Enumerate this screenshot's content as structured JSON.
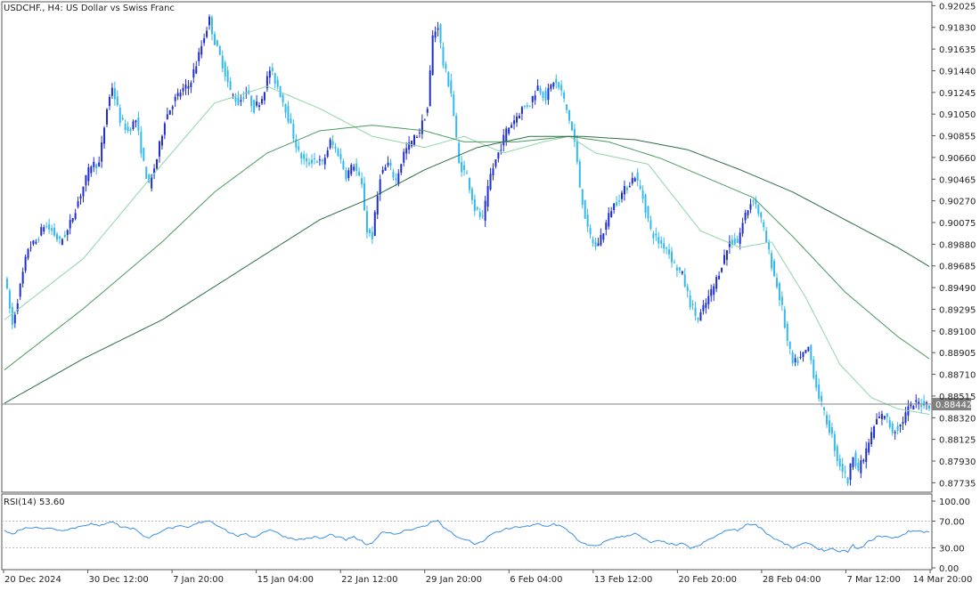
{
  "symbol_title": "USDCHF., H4:  US Dollar vs Swiss Franc",
  "rsi_label": "RSI(14) 53.60",
  "current_price_label": "0.88442",
  "colors": {
    "bull": "#1f2ed1",
    "bear": "#33b9f2",
    "ma_fast": "#8fd6a8",
    "ma_mid": "#4a9a62",
    "ma_slow": "#2d6e45",
    "rsi": "#3c8ee8",
    "grid": "#e6e6e6",
    "frame": "#555555",
    "price_line": "#808080",
    "price_tag": "#808080"
  },
  "chart_data": [
    {
      "type": "candlestick",
      "price_axis_labels": [
        "0.92025",
        "0.91830",
        "0.91635",
        "0.91440",
        "0.91245",
        "0.91050",
        "0.90855",
        "0.90660",
        "0.90465",
        "0.90270",
        "0.90075",
        "0.89880",
        "0.89685",
        "0.89490",
        "0.89295",
        "0.89100",
        "0.88905",
        "0.88710",
        "0.88515",
        "0.88320",
        "0.88125",
        "0.87930",
        "0.87735"
      ],
      "price_range": [
        0.8765,
        0.9206
      ],
      "time_axis_labels": [
        "20 Dec 2024",
        "30 Dec 12:00",
        "7 Jan 20:00",
        "15 Jan 04:00",
        "22 Jan 12:00",
        "29 Jan 20:00",
        "6 Feb 04:00",
        "13 Feb 12:00",
        "20 Feb 20:00",
        "28 Feb 04:00",
        "7 Mar 12:00",
        "14 Mar 20:00"
      ],
      "last_price": 0.88442,
      "close_path": [
        [
          0,
          0.896
        ],
        [
          3,
          0.8915
        ],
        [
          6,
          0.895
        ],
        [
          9,
          0.8985
        ],
        [
          12,
          0.899
        ],
        [
          15,
          0.9005
        ],
        [
          18,
          0.9
        ],
        [
          21,
          0.899
        ],
        [
          24,
          0.9
        ],
        [
          27,
          0.902
        ],
        [
          30,
          0.904
        ],
        [
          33,
          0.906
        ],
        [
          36,
          0.906
        ],
        [
          39,
          0.911
        ],
        [
          41,
          0.913
        ],
        [
          44,
          0.91
        ],
        [
          47,
          0.909
        ],
        [
          50,
          0.91
        ],
        [
          53,
          0.906
        ],
        [
          55,
          0.904
        ],
        [
          58,
          0.9065
        ],
        [
          61,
          0.91
        ],
        [
          64,
          0.9115
        ],
        [
          67,
          0.9125
        ],
        [
          70,
          0.913
        ],
        [
          73,
          0.915
        ],
        [
          76,
          0.9175
        ],
        [
          78,
          0.919
        ],
        [
          80,
          0.917
        ],
        [
          83,
          0.915
        ],
        [
          86,
          0.9125
        ],
        [
          89,
          0.9115
        ],
        [
          92,
          0.9125
        ],
        [
          95,
          0.911
        ],
        [
          98,
          0.912
        ],
        [
          101,
          0.9145
        ],
        [
          104,
          0.913
        ],
        [
          107,
          0.911
        ],
        [
          110,
          0.9085
        ],
        [
          112,
          0.907
        ],
        [
          115,
          0.906
        ],
        [
          118,
          0.9065
        ],
        [
          121,
          0.906
        ],
        [
          124,
          0.908
        ],
        [
          127,
          0.907
        ],
        [
          130,
          0.905
        ],
        [
          133,
          0.906
        ],
        [
          136,
          0.904
        ],
        [
          138,
          0.9
        ],
        [
          140,
          0.8995
        ],
        [
          143,
          0.905
        ],
        [
          146,
          0.906
        ],
        [
          149,
          0.9045
        ],
        [
          152,
          0.907
        ],
        [
          155,
          0.908
        ],
        [
          158,
          0.909
        ],
        [
          161,
          0.911
        ],
        [
          163,
          0.9175
        ],
        [
          165,
          0.9185
        ],
        [
          167,
          0.915
        ],
        [
          170,
          0.9125
        ],
        [
          173,
          0.906
        ],
        [
          176,
          0.905
        ],
        [
          179,
          0.902
        ],
        [
          182,
          0.901
        ],
        [
          185,
          0.905
        ],
        [
          188,
          0.907
        ],
        [
          191,
          0.909
        ],
        [
          194,
          0.91
        ],
        [
          197,
          0.911
        ],
        [
          200,
          0.9115
        ],
        [
          203,
          0.913
        ],
        [
          206,
          0.912
        ],
        [
          209,
          0.9135
        ],
        [
          212,
          0.9125
        ],
        [
          215,
          0.91
        ],
        [
          217,
          0.908
        ],
        [
          219,
          0.904
        ],
        [
          222,
          0.9
        ],
        [
          225,
          0.8985
        ],
        [
          228,
          0.9
        ],
        [
          231,
          0.902
        ],
        [
          234,
          0.903
        ],
        [
          237,
          0.904
        ],
        [
          240,
          0.905
        ],
        [
          243,
          0.903
        ],
        [
          246,
          0.9
        ],
        [
          249,
          0.899
        ],
        [
          252,
          0.8985
        ],
        [
          255,
          0.897
        ],
        [
          258,
          0.896
        ],
        [
          261,
          0.8935
        ],
        [
          264,
          0.892
        ],
        [
          267,
          0.8935
        ],
        [
          270,
          0.895
        ],
        [
          273,
          0.897
        ],
        [
          276,
          0.899
        ],
        [
          279,
          0.899
        ],
        [
          282,
          0.9015
        ],
        [
          285,
          0.903
        ],
        [
          288,
          0.901
        ],
        [
          290,
          0.899
        ],
        [
          293,
          0.896
        ],
        [
          296,
          0.893
        ],
        [
          298,
          0.89
        ],
        [
          300,
          0.888
        ],
        [
          303,
          0.8885
        ],
        [
          306,
          0.8895
        ],
        [
          309,
          0.886
        ],
        [
          312,
          0.8835
        ],
        [
          315,
          0.8815
        ],
        [
          317,
          0.8795
        ],
        [
          319,
          0.8785
        ],
        [
          321,
          0.8775
        ],
        [
          323,
          0.88
        ],
        [
          325,
          0.8785
        ],
        [
          327,
          0.8795
        ],
        [
          329,
          0.881
        ],
        [
          332,
          0.883
        ],
        [
          335,
          0.8835
        ],
        [
          338,
          0.882
        ],
        [
          341,
          0.8825
        ],
        [
          344,
          0.884
        ],
        [
          347,
          0.8845
        ],
        [
          350,
          0.8845
        ],
        [
          352,
          0.8844
        ]
      ],
      "ma_fast_path": [
        [
          0,
          0.892
        ],
        [
          30,
          0.8975
        ],
        [
          60,
          0.906
        ],
        [
          80,
          0.9115
        ],
        [
          100,
          0.913
        ],
        [
          120,
          0.911
        ],
        [
          140,
          0.9085
        ],
        [
          160,
          0.9075
        ],
        [
          175,
          0.9085
        ],
        [
          190,
          0.907
        ],
        [
          205,
          0.908
        ],
        [
          215,
          0.9085
        ],
        [
          225,
          0.907
        ],
        [
          245,
          0.906
        ],
        [
          265,
          0.9
        ],
        [
          280,
          0.8985
        ],
        [
          292,
          0.899
        ],
        [
          305,
          0.894
        ],
        [
          318,
          0.888
        ],
        [
          330,
          0.885
        ],
        [
          340,
          0.884
        ],
        [
          352,
          0.8835
        ]
      ],
      "ma_mid_path": [
        [
          0,
          0.8875
        ],
        [
          30,
          0.893
        ],
        [
          60,
          0.899
        ],
        [
          80,
          0.9035
        ],
        [
          100,
          0.907
        ],
        [
          120,
          0.909
        ],
        [
          140,
          0.9095
        ],
        [
          160,
          0.909
        ],
        [
          175,
          0.908
        ],
        [
          195,
          0.908
        ],
        [
          215,
          0.9085
        ],
        [
          230,
          0.908
        ],
        [
          250,
          0.9065
        ],
        [
          270,
          0.9045
        ],
        [
          285,
          0.903
        ],
        [
          300,
          0.8995
        ],
        [
          320,
          0.8945
        ],
        [
          340,
          0.8905
        ],
        [
          352,
          0.8885
        ]
      ],
      "ma_slow_path": [
        [
          0,
          0.8845
        ],
        [
          30,
          0.8885
        ],
        [
          60,
          0.892
        ],
        [
          80,
          0.895
        ],
        [
          100,
          0.898
        ],
        [
          120,
          0.901
        ],
        [
          140,
          0.903
        ],
        [
          160,
          0.9055
        ],
        [
          180,
          0.9075
        ],
        [
          200,
          0.9085
        ],
        [
          220,
          0.9085
        ],
        [
          240,
          0.9082
        ],
        [
          260,
          0.9073
        ],
        [
          280,
          0.9055
        ],
        [
          300,
          0.9035
        ],
        [
          320,
          0.901
        ],
        [
          340,
          0.8985
        ],
        [
          352,
          0.8968
        ]
      ]
    },
    {
      "type": "line",
      "name": "RSI(14)",
      "y_axis_labels": [
        "100.00",
        "70.00",
        "30.00",
        "0.00"
      ],
      "ylim": [
        0,
        100
      ],
      "levels": [
        70,
        30
      ],
      "values": [
        [
          0,
          56
        ],
        [
          3,
          50
        ],
        [
          6,
          58
        ],
        [
          9,
          60
        ],
        [
          12,
          62
        ],
        [
          15,
          58
        ],
        [
          18,
          60
        ],
        [
          21,
          56
        ],
        [
          24,
          58
        ],
        [
          27,
          60
        ],
        [
          30,
          64
        ],
        [
          33,
          66
        ],
        [
          36,
          62
        ],
        [
          39,
          68
        ],
        [
          41,
          70
        ],
        [
          44,
          62
        ],
        [
          47,
          60
        ],
        [
          50,
          58
        ],
        [
          53,
          48
        ],
        [
          55,
          44
        ],
        [
          58,
          52
        ],
        [
          61,
          58
        ],
        [
          64,
          60
        ],
        [
          67,
          62
        ],
        [
          70,
          60
        ],
        [
          73,
          66
        ],
        [
          76,
          70
        ],
        [
          78,
          71
        ],
        [
          80,
          66
        ],
        [
          83,
          60
        ],
        [
          86,
          52
        ],
        [
          89,
          48
        ],
        [
          92,
          50
        ],
        [
          95,
          46
        ],
        [
          98,
          52
        ],
        [
          101,
          58
        ],
        [
          104,
          52
        ],
        [
          107,
          46
        ],
        [
          110,
          44
        ],
        [
          112,
          42
        ],
        [
          115,
          44
        ],
        [
          118,
          46
        ],
        [
          121,
          44
        ],
        [
          124,
          50
        ],
        [
          127,
          46
        ],
        [
          130,
          42
        ],
        [
          133,
          46
        ],
        [
          136,
          40
        ],
        [
          138,
          34
        ],
        [
          140,
          36
        ],
        [
          143,
          52
        ],
        [
          146,
          54
        ],
        [
          149,
          50
        ],
        [
          152,
          56
        ],
        [
          155,
          58
        ],
        [
          158,
          60
        ],
        [
          161,
          64
        ],
        [
          163,
          70
        ],
        [
          165,
          72
        ],
        [
          167,
          60
        ],
        [
          170,
          54
        ],
        [
          173,
          44
        ],
        [
          176,
          42
        ],
        [
          179,
          36
        ],
        [
          182,
          38
        ],
        [
          185,
          50
        ],
        [
          188,
          54
        ],
        [
          191,
          58
        ],
        [
          194,
          60
        ],
        [
          197,
          62
        ],
        [
          200,
          62
        ],
        [
          203,
          66
        ],
        [
          206,
          62
        ],
        [
          209,
          66
        ],
        [
          212,
          62
        ],
        [
          215,
          54
        ],
        [
          217,
          48
        ],
        [
          219,
          38
        ],
        [
          222,
          34
        ],
        [
          225,
          32
        ],
        [
          228,
          38
        ],
        [
          231,
          44
        ],
        [
          234,
          46
        ],
        [
          237,
          48
        ],
        [
          240,
          52
        ],
        [
          243,
          44
        ],
        [
          246,
          38
        ],
        [
          249,
          40
        ],
        [
          252,
          38
        ],
        [
          255,
          34
        ],
        [
          258,
          36
        ],
        [
          261,
          30
        ],
        [
          264,
          32
        ],
        [
          267,
          40
        ],
        [
          270,
          46
        ],
        [
          273,
          52
        ],
        [
          276,
          58
        ],
        [
          279,
          56
        ],
        [
          282,
          64
        ],
        [
          285,
          66
        ],
        [
          288,
          60
        ],
        [
          290,
          52
        ],
        [
          293,
          44
        ],
        [
          296,
          38
        ],
        [
          298,
          34
        ],
        [
          300,
          30
        ],
        [
          303,
          34
        ],
        [
          306,
          38
        ],
        [
          309,
          30
        ],
        [
          312,
          26
        ],
        [
          315,
          28
        ],
        [
          317,
          24
        ],
        [
          319,
          26
        ],
        [
          321,
          24
        ],
        [
          323,
          34
        ],
        [
          325,
          28
        ],
        [
          327,
          32
        ],
        [
          329,
          40
        ],
        [
          332,
          46
        ],
        [
          335,
          48
        ],
        [
          338,
          44
        ],
        [
          341,
          48
        ],
        [
          344,
          54
        ],
        [
          347,
          56
        ],
        [
          350,
          54
        ],
        [
          352,
          54
        ]
      ]
    }
  ]
}
